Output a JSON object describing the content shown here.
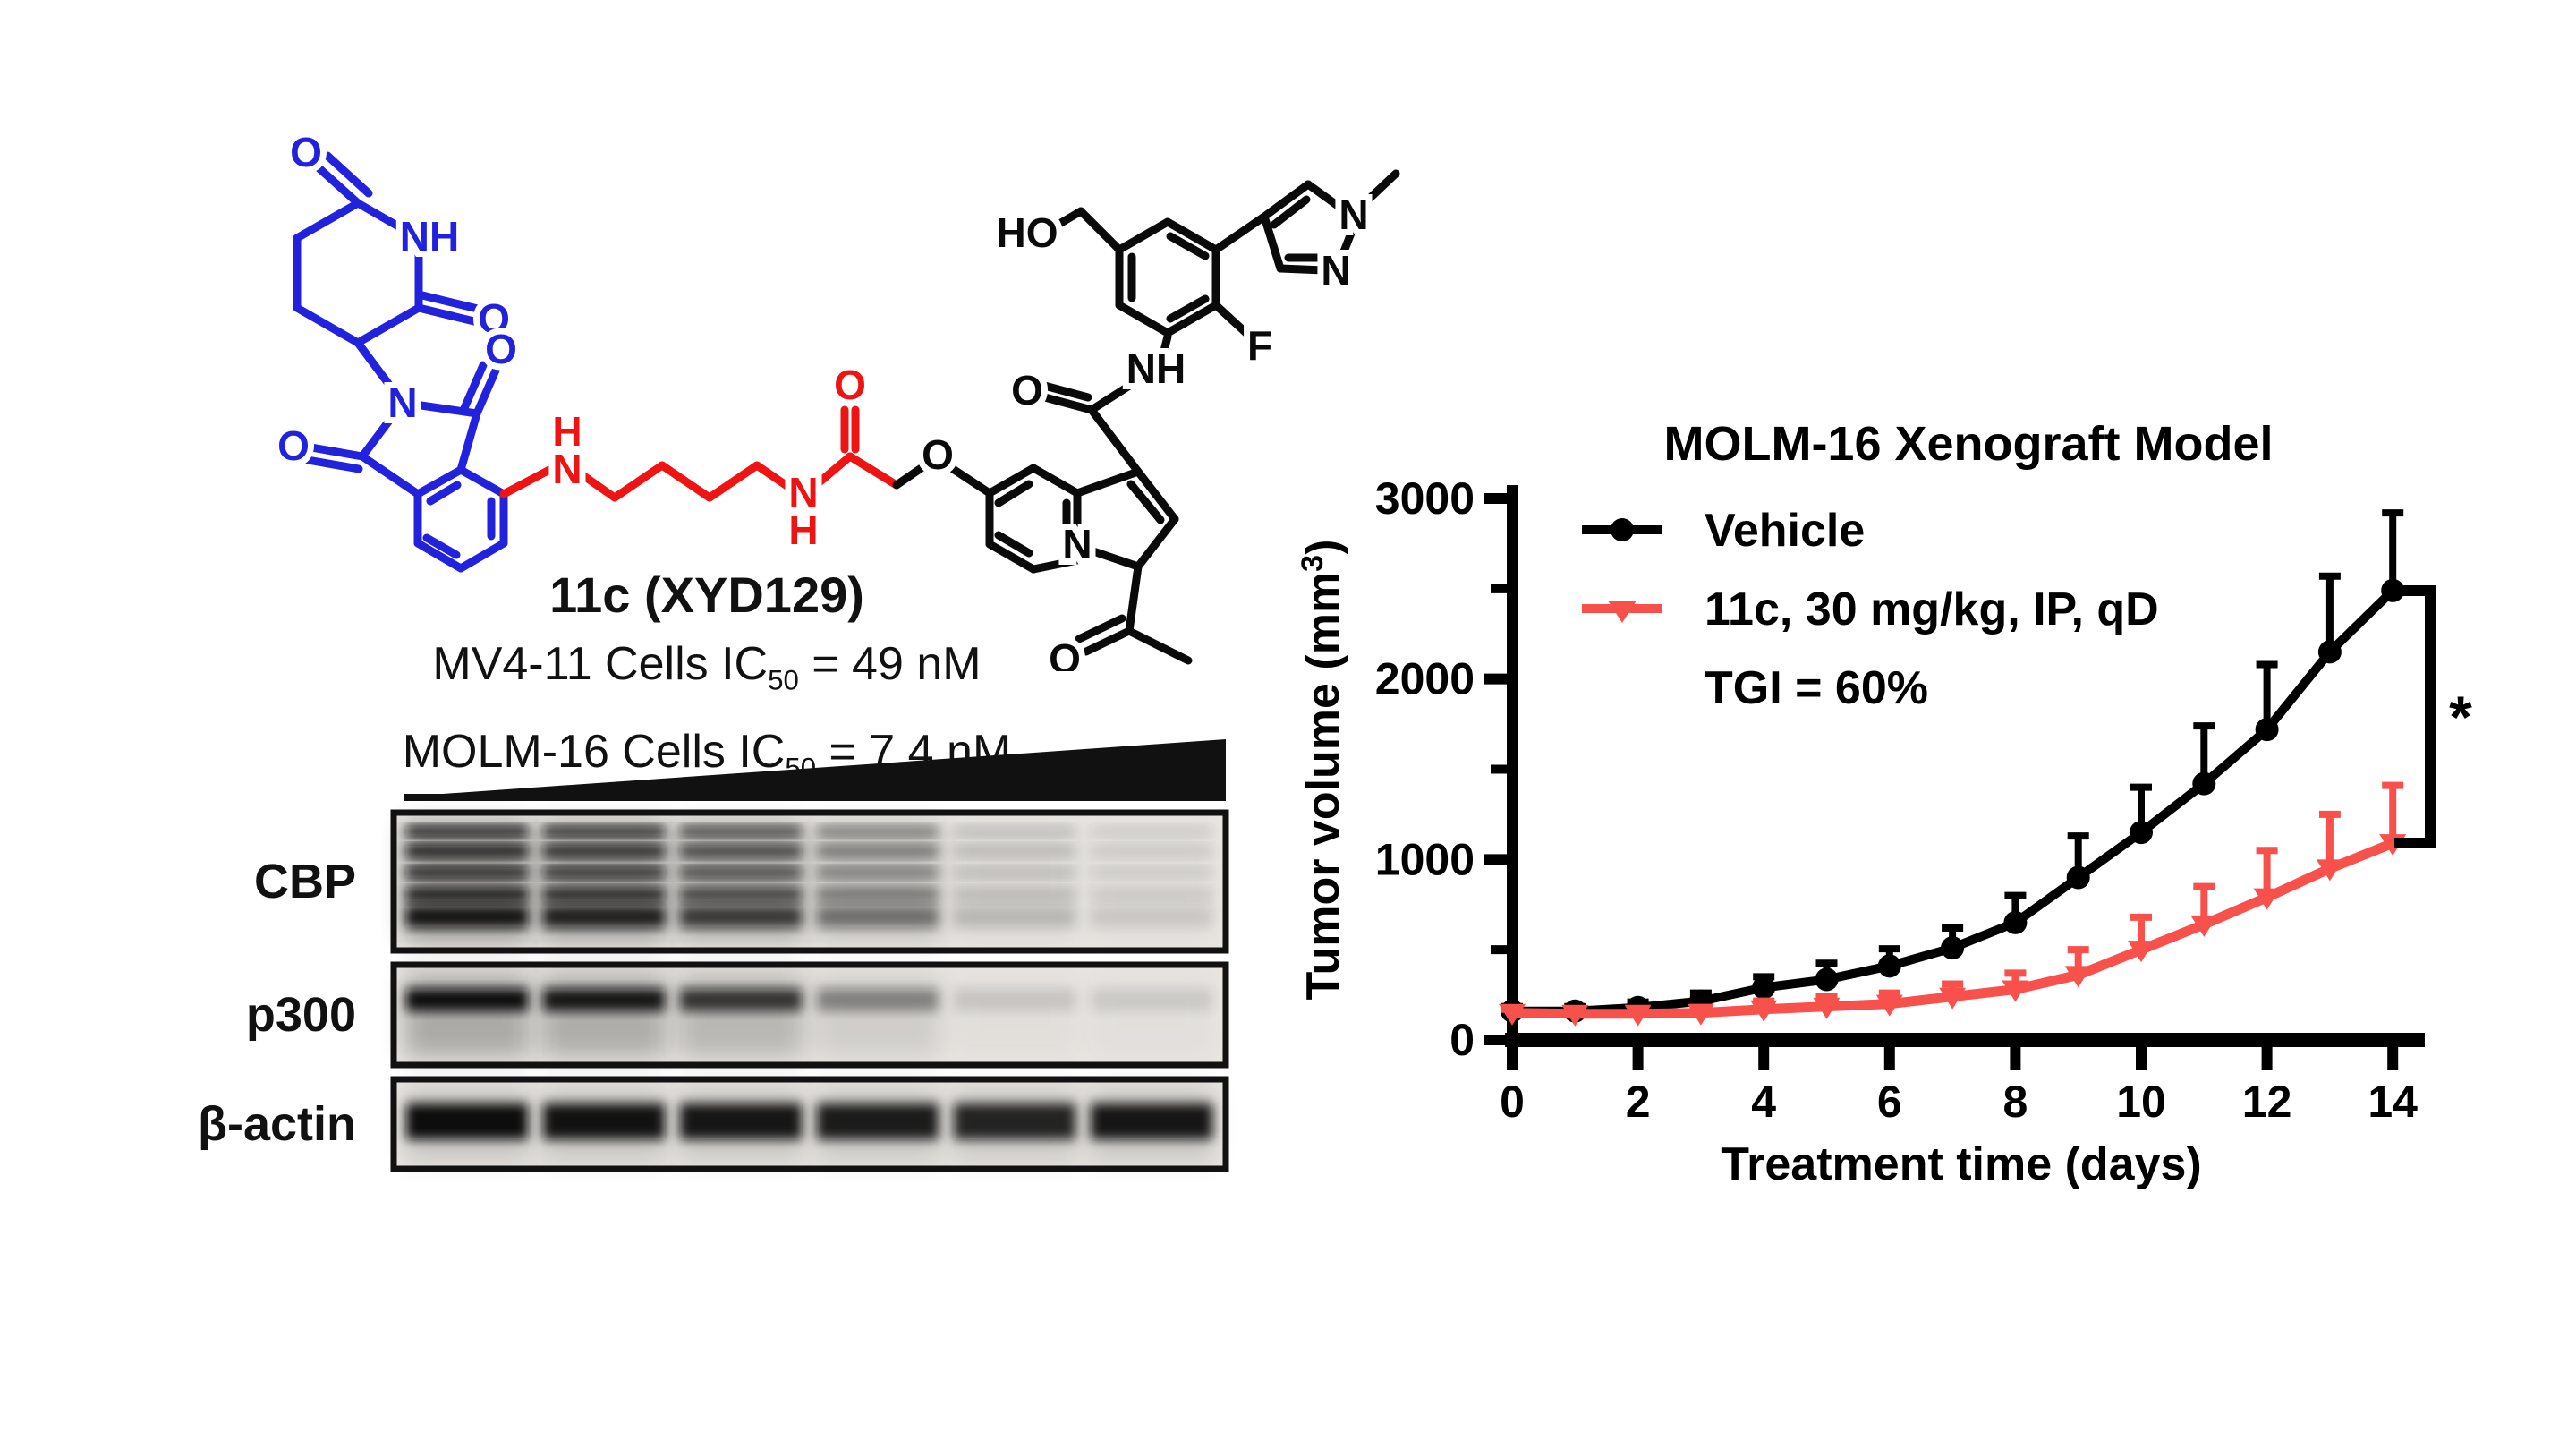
{
  "page": {
    "background": "#FFFFFF"
  },
  "compound": {
    "title": "11c (XYD129)",
    "ic50_lines": [
      {
        "prefix": "MV4-11 Cells IC",
        "sub": "50",
        "suffix": " = 49 nM"
      },
      {
        "prefix": "MOLM-16 Cells IC",
        "sub": "50",
        "suffix": " = 7.4 nM"
      }
    ],
    "structure_colors": {
      "cereblon_binder": "#2222DD",
      "linker": "#EE1414",
      "warhead": "#0A0A0A"
    },
    "atoms": [
      {
        "t": "O"
      },
      {
        "t": "NH"
      },
      {
        "t": "O"
      },
      {
        "t": "N"
      },
      {
        "t": "O"
      },
      {
        "t": "O"
      },
      {
        "t": "H"
      },
      {
        "t": "N"
      },
      {
        "t": "N"
      },
      {
        "t": "H"
      },
      {
        "t": "O"
      },
      {
        "t": "O"
      },
      {
        "t": "N"
      },
      {
        "t": "O"
      },
      {
        "t": "NH"
      },
      {
        "t": "O"
      },
      {
        "t": "HO"
      },
      {
        "t": "F"
      },
      {
        "t": "N"
      },
      {
        "t": "N"
      }
    ]
  },
  "western_blot": {
    "gradient_icon": "increasing-dose-wedge",
    "panels": [
      {
        "label": "CBP",
        "lanes": [
          0.95,
          0.88,
          0.72,
          0.45,
          0.16,
          0.1
        ]
      },
      {
        "label": "p300",
        "lanes": [
          1.0,
          0.95,
          0.78,
          0.4,
          0.12,
          0.1
        ]
      },
      {
        "label": "β-actin",
        "lanes": [
          1.0,
          0.97,
          0.95,
          0.92,
          0.88,
          0.95
        ]
      }
    ]
  },
  "chart_data": {
    "type": "line",
    "title": "MOLM-16 Xenograft Model",
    "xlabel": "Treatment time (days)",
    "ylabel": "Tumor volume (mm³)",
    "ylabel_parts": {
      "prefix": "Tumor volume (mm",
      "sup": "3",
      "suffix": ")"
    },
    "xlim": [
      0,
      14
    ],
    "ylim": [
      0,
      3000
    ],
    "xticks": [
      0,
      2,
      4,
      6,
      8,
      10,
      12,
      14
    ],
    "yticks": [
      0,
      1000,
      2000,
      3000
    ],
    "yticks_minor": [
      500,
      1500,
      2500
    ],
    "grid": false,
    "legend_position": "upper-left-inside",
    "x": [
      0,
      1,
      2,
      3,
      4,
      5,
      6,
      7,
      8,
      9,
      10,
      11,
      12,
      13,
      14
    ],
    "series": [
      {
        "name": "Vehicle",
        "color": "#000000",
        "marker": "circle",
        "values": [
          160,
          160,
          180,
          215,
          290,
          335,
          410,
          510,
          650,
          900,
          1150,
          1420,
          1720,
          2150,
          2490
        ],
        "err_up": [
          25,
          25,
          30,
          45,
          60,
          90,
          95,
          110,
          150,
          230,
          250,
          320,
          360,
          420,
          430
        ]
      },
      {
        "name": "11c, 30 mg/kg, IP, qD",
        "color": "#F8514C",
        "marker": "triangle-down",
        "values": [
          150,
          145,
          145,
          150,
          170,
          185,
          200,
          240,
          280,
          360,
          500,
          640,
          790,
          950,
          1090
        ],
        "err_up": [
          20,
          20,
          25,
          30,
          45,
          55,
          60,
          70,
          90,
          140,
          180,
          210,
          260,
          300,
          320
        ]
      }
    ],
    "annotations": {
      "tgi": "TGI = 60%",
      "significance": "*"
    }
  }
}
